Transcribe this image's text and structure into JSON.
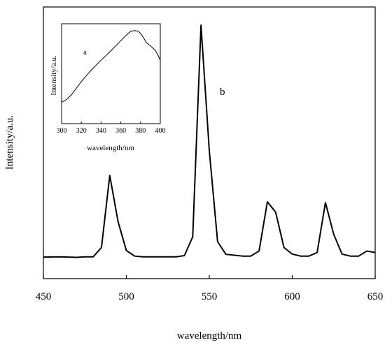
{
  "chart_data": [
    {
      "type": "line",
      "xlabel": "wavelength/nm",
      "ylabel": "Intensity/a.u.",
      "xlim": [
        450,
        650
      ],
      "ylim": [
        0,
        100
      ],
      "xticks": [
        450,
        500,
        550,
        600,
        650
      ],
      "yticks_visible": false,
      "grid": false,
      "annotation": "b",
      "series": [
        {
          "x": [
            450,
            460,
            470,
            475,
            480,
            485,
            490,
            495,
            500,
            505,
            510,
            520,
            530,
            535,
            540,
            545,
            550,
            555,
            560,
            570,
            575,
            580,
            585,
            590,
            595,
            600,
            605,
            610,
            615,
            620,
            625,
            630,
            635,
            640,
            645,
            650
          ],
          "values": [
            8.5,
            8.6,
            8.4,
            8.6,
            8.6,
            12.3,
            40.7,
            22.5,
            11.1,
            8.9,
            8.6,
            8.6,
            8.6,
            9.1,
            16.5,
            100,
            50.5,
            14.6,
            9.6,
            8.9,
            8.9,
            10.9,
            30.3,
            26.2,
            12.3,
            9.7,
            8.9,
            8.9,
            10.3,
            30.0,
            17.5,
            9.7,
            8.9,
            8.9,
            10.9,
            10.3
          ]
        }
      ]
    },
    {
      "type": "line",
      "inset": true,
      "xlabel": "wavelength/nm",
      "ylabel": "Intensity/a.u.",
      "xlim": [
        300,
        400
      ],
      "ylim": [
        0,
        100
      ],
      "xticks": [
        300,
        320,
        340,
        360,
        380,
        400
      ],
      "yticks_visible": false,
      "grid": false,
      "annotation": "a",
      "series": [
        {
          "x": [
            300,
            305,
            310,
            320,
            330,
            340,
            350,
            360,
            365,
            370,
            374,
            378,
            382,
            386,
            390,
            395,
            398,
            400
          ],
          "values": [
            21.4,
            24.2,
            28.9,
            42.1,
            53.5,
            63.5,
            72.9,
            83.1,
            88.0,
            92.3,
            93.2,
            92.5,
            87.5,
            81.1,
            77.8,
            73.3,
            67.9,
            63.2
          ]
        }
      ]
    }
  ]
}
